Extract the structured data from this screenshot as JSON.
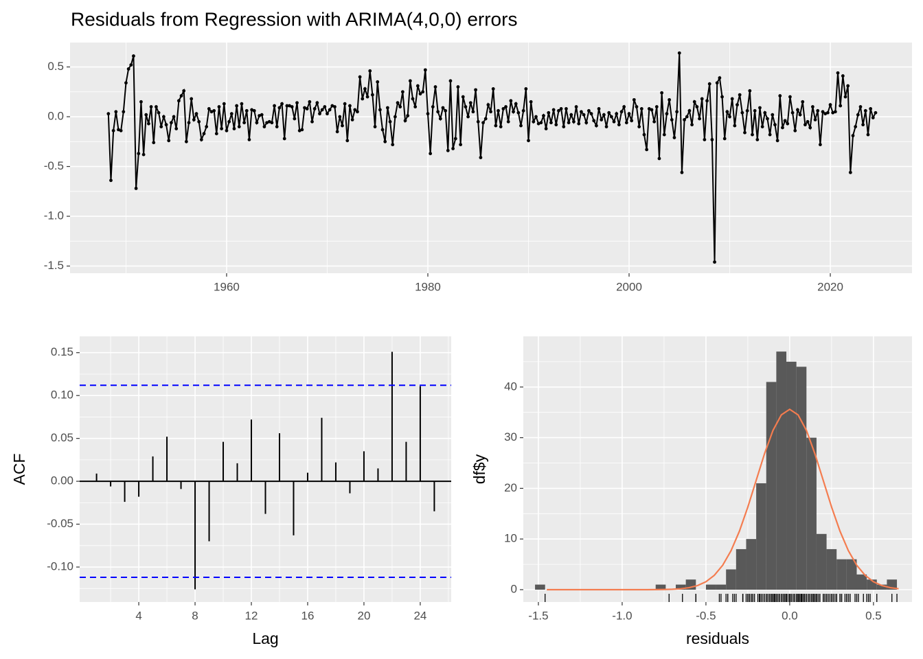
{
  "chart_data": [
    {
      "type": "line",
      "title": "Residuals from Regression with ARIMA(4,0,0) errors",
      "x": [
        1948.25,
        1948.5,
        1948.75,
        1949,
        1949.25,
        1949.5,
        1949.75,
        1950,
        1950.25,
        1950.5,
        1950.75,
        1951,
        1951.25,
        1951.5,
        1951.75,
        1952,
        1952.25,
        1952.5,
        1952.75,
        1953,
        1953.25,
        1953.5,
        1953.75,
        1954,
        1954.25,
        1954.5,
        1954.75,
        1955,
        1955.25,
        1955.5,
        1955.75,
        1956,
        1956.25,
        1956.5,
        1956.75,
        1957,
        1957.25,
        1957.5,
        1957.75,
        1958,
        1958.25,
        1958.5,
        1958.75,
        1959,
        1959.25,
        1959.5,
        1959.75,
        1960,
        1960.25,
        1960.5,
        1960.75,
        1961,
        1961.25,
        1961.5,
        1961.75,
        1962,
        1962.25,
        1962.5,
        1962.75,
        1963,
        1963.25,
        1963.5,
        1963.75,
        1964,
        1964.25,
        1964.5,
        1964.75,
        1965,
        1965.25,
        1965.5,
        1965.75,
        1966,
        1966.25,
        1966.5,
        1966.75,
        1967,
        1967.25,
        1967.5,
        1967.75,
        1968,
        1968.25,
        1968.5,
        1968.75,
        1969,
        1969.25,
        1969.5,
        1969.75,
        1970,
        1970.25,
        1970.5,
        1970.75,
        1971,
        1971.25,
        1971.5,
        1971.75,
        1972,
        1972.25,
        1972.5,
        1972.75,
        1973,
        1973.25,
        1973.5,
        1973.75,
        1974,
        1974.25,
        1974.5,
        1974.75,
        1975,
        1975.25,
        1975.5,
        1975.75,
        1976,
        1976.25,
        1976.5,
        1976.75,
        1977,
        1977.25,
        1977.5,
        1977.75,
        1978,
        1978.25,
        1978.5,
        1978.75,
        1979,
        1979.25,
        1979.5,
        1979.75,
        1980,
        1980.25,
        1980.5,
        1980.75,
        1981,
        1981.25,
        1981.5,
        1981.75,
        1982,
        1982.25,
        1982.5,
        1982.75,
        1983,
        1983.25,
        1983.5,
        1983.75,
        1984,
        1984.25,
        1984.5,
        1984.75,
        1985,
        1985.25,
        1985.5,
        1985.75,
        1986,
        1986.25,
        1986.5,
        1986.75,
        1987,
        1987.25,
        1987.5,
        1987.75,
        1988,
        1988.25,
        1988.5,
        1988.75,
        1989,
        1989.25,
        1989.5,
        1989.75,
        1990,
        1990.25,
        1990.5,
        1990.75,
        1991,
        1991.25,
        1991.5,
        1991.75,
        1992,
        1992.25,
        1992.5,
        1992.75,
        1993,
        1993.25,
        1993.5,
        1993.75,
        1994,
        1994.25,
        1994.5,
        1994.75,
        1995,
        1995.25,
        1995.5,
        1995.75,
        1996,
        1996.25,
        1996.5,
        1996.75,
        1997,
        1997.25,
        1997.5,
        1997.75,
        1998,
        1998.25,
        1998.5,
        1998.75,
        1999,
        1999.25,
        1999.5,
        1999.75,
        2000,
        2000.25,
        2000.5,
        2000.75,
        2001,
        2001.25,
        2001.5,
        2001.75,
        2002,
        2002.25,
        2002.5,
        2002.75,
        2003,
        2003.25,
        2003.5,
        2003.75,
        2004,
        2004.25,
        2004.5,
        2004.75,
        2005,
        2005.25,
        2005.5,
        2005.75,
        2006,
        2006.25,
        2006.5,
        2006.75,
        2007,
        2007.25,
        2007.5,
        2007.75,
        2008,
        2008.25,
        2008.5,
        2008.75,
        2009,
        2009.25,
        2009.5,
        2009.75,
        2010,
        2010.25,
        2010.5,
        2010.75,
        2011,
        2011.25,
        2011.5,
        2011.75,
        2012,
        2012.25,
        2012.5,
        2012.75,
        2013,
        2013.25,
        2013.5,
        2013.75,
        2014,
        2014.25,
        2014.5,
        2014.75,
        2015,
        2015.25,
        2015.5,
        2015.75,
        2016,
        2016.25,
        2016.5,
        2016.75,
        2017,
        2017.25,
        2017.5,
        2017.75,
        2018,
        2018.25,
        2018.5,
        2018.75,
        2019,
        2019.25,
        2019.5,
        2019.75,
        2020,
        2020.25,
        2020.5,
        2020.75,
        2021,
        2021.25,
        2021.5,
        2021.75,
        2022,
        2022.25,
        2022.5,
        2022.75,
        2023,
        2023.25,
        2023.5,
        2023.75,
        2024,
        2024.25,
        2024.5
      ],
      "series": [
        {
          "color": "#000000",
          "values": [
            0.03,
            -0.64,
            -0.14,
            0.05,
            -0.13,
            -0.14,
            0.05,
            0.34,
            0.48,
            0.52,
            0.61,
            -0.72,
            -0.37,
            0.15,
            -0.38,
            0.02,
            -0.07,
            0.1,
            -0.26,
            0.1,
            0.04,
            -0.1,
            0.0,
            -0.08,
            -0.24,
            -0.06,
            0.0,
            -0.12,
            0.16,
            0.21,
            0.26,
            -0.25,
            -0.06,
            0.18,
            -0.03,
            0.03,
            -0.05,
            -0.23,
            -0.17,
            -0.1,
            0.08,
            0.05,
            0.06,
            -0.17,
            0.1,
            -0.12,
            0.13,
            -0.14,
            -0.05,
            0.03,
            -0.12,
            0.11,
            -0.1,
            0.13,
            -0.06,
            0.06,
            -0.23,
            0.07,
            0.06,
            -0.06,
            0.01,
            0.02,
            -0.1,
            -0.06,
            -0.05,
            -0.06,
            0.11,
            -0.1,
            0.09,
            0.13,
            -0.22,
            0.11,
            0.11,
            0.1,
            -0.02,
            0.14,
            -0.14,
            -0.13,
            0.09,
            0.08,
            0.15,
            -0.05,
            0.08,
            0.14,
            0.03,
            0.07,
            0.1,
            0.03,
            0.07,
            0.11,
            0.1,
            -0.15,
            0.0,
            -0.09,
            0.13,
            -0.24,
            0.11,
            -0.03,
            0.07,
            0.05,
            0.4,
            0.18,
            0.28,
            0.2,
            0.46,
            0.22,
            -0.1,
            0.35,
            0.07,
            -0.13,
            -0.25,
            0.09,
            -0.05,
            -0.28,
            0.0,
            0.14,
            0.1,
            0.25,
            -0.04,
            0.01,
            0.36,
            0.18,
            0.1,
            0.31,
            0.23,
            0.25,
            0.47,
            0.03,
            -0.37,
            0.1,
            0.3,
            0.05,
            -0.02,
            0.09,
            0.06,
            -0.34,
            0.36,
            -0.32,
            -0.22,
            0.3,
            -0.28,
            0.2,
            0.1,
            0.0,
            0.14,
            0.05,
            0.27,
            -0.05,
            -0.41,
            -0.06,
            -0.02,
            0.12,
            0.05,
            0.28,
            -0.09,
            0.06,
            -0.1,
            0.08,
            0.1,
            -0.05,
            0.16,
            0.05,
            0.13,
            0.04,
            -0.09,
            0.06,
            0.28,
            -0.24,
            0.15,
            -0.05,
            0.0,
            -0.07,
            -0.06,
            0.01,
            -0.12,
            0.04,
            -0.06,
            0.07,
            -0.08,
            0.06,
            0.08,
            -0.1,
            0.08,
            -0.06,
            0.02,
            -0.05,
            0.1,
            -0.07,
            0.05,
            0.02,
            -0.06,
            0.06,
            0.03,
            -0.04,
            -0.09,
            0.08,
            -0.03,
            0.02,
            -0.1,
            0.04,
            0.0,
            -0.05,
            0.03,
            -0.08,
            0.05,
            0.1,
            -0.06,
            0.03,
            -0.04,
            0.17,
            0.1,
            -0.1,
            0.08,
            -0.18,
            -0.33,
            0.08,
            0.07,
            -0.05,
            0.1,
            -0.42,
            0.24,
            -0.18,
            0.03,
            0.17,
            -0.03,
            -0.21,
            0.05,
            0.64,
            -0.56,
            -0.03,
            0.0,
            0.06,
            -0.08,
            0.15,
            0.1,
            -0.02,
            0.18,
            -0.23,
            0.16,
            0.33,
            -0.23,
            -1.46,
            0.34,
            0.39,
            0.2,
            -0.22,
            0.05,
            0.0,
            0.18,
            -0.09,
            0.12,
            0.22,
            0.04,
            -0.16,
            0.06,
            0.26,
            -0.18,
            0.06,
            -0.23,
            0.09,
            -0.1,
            0.04,
            -0.02,
            -0.18,
            0.02,
            -0.08,
            -0.24,
            0.21,
            -0.11,
            -0.04,
            -0.07,
            0.2,
            0.04,
            -0.14,
            0.07,
            0.02,
            0.15,
            -0.08,
            -0.05,
            -0.11,
            0.1,
            -0.03,
            0.06,
            -0.28,
            0.05,
            0.03,
            0.04,
            0.12,
            0.04,
            0.05,
            0.44,
            0.11,
            0.41,
            0.2,
            0.31,
            -0.56,
            -0.19,
            -0.1,
            0.02,
            0.1,
            -0.08,
            0.06,
            -0.18,
            0.08,
            -0.01,
            0.04
          ]
        }
      ],
      "xlim": [
        1944.44,
        2028.12
      ],
      "ylim": [
        -1.572,
        0.745
      ],
      "xticks": [
        1960,
        1980,
        2000,
        2020
      ],
      "yticks": [
        -1.5,
        {
          "value": -1,
          "label": "-1.0"
        },
        -0.5,
        {
          "value": 0,
          "label": "0.0"
        },
        0.5
      ],
      "grid": true
    },
    {
      "type": "acf",
      "xlabel": "Lag",
      "ylabel": "ACF",
      "x": [
        1,
        2,
        3,
        4,
        5,
        6,
        7,
        8,
        9,
        10,
        11,
        12,
        13,
        14,
        15,
        16,
        17,
        18,
        19,
        20,
        21,
        22,
        23,
        24,
        25
      ],
      "values": [
        0.009,
        -0.006,
        -0.024,
        -0.018,
        0.029,
        0.052,
        -0.009,
        -0.126,
        -0.07,
        0.046,
        0.021,
        0.072,
        -0.038,
        0.056,
        -0.063,
        0.01,
        0.074,
        0.022,
        -0.014,
        0.035,
        0.015,
        0.151,
        0.046,
        0.111,
        -0.035
      ],
      "color": "#000000",
      "bounds": [
        0.112,
        -0.112
      ],
      "bounds_color": "#0000ff",
      "xlim": [
        -0.2,
        26.2
      ],
      "ylim": [
        -0.1408,
        0.169
      ],
      "xticks": [
        4,
        8,
        12,
        16,
        20,
        24
      ],
      "yticks": [
        {
          "value": -0.1,
          "label": "-0.10"
        },
        {
          "value": -0.05,
          "label": "-0.05"
        },
        {
          "value": 0,
          "label": "0.00"
        },
        {
          "value": 0.05,
          "label": "0.05"
        },
        {
          "value": 0.1,
          "label": "0.10"
        },
        {
          "value": 0.15,
          "label": "0.15"
        }
      ],
      "grid": true
    },
    {
      "type": "histogram",
      "xlabel": "residuals",
      "ylabel": "df$y",
      "bins": [
        -1.52,
        -1.46,
        -1.4,
        -1.34,
        -1.28,
        -1.22,
        -1.16,
        -1.1,
        -1.04,
        -0.98,
        -0.92,
        -0.86,
        -0.8,
        -0.74,
        -0.68,
        -0.62,
        -0.56,
        -0.5,
        -0.44,
        -0.38,
        -0.32,
        -0.26,
        -0.2,
        -0.14,
        -0.08,
        -0.02,
        0.04,
        0.1,
        0.16,
        0.22,
        0.28,
        0.34,
        0.4,
        0.46,
        0.52,
        0.58,
        0.64
      ],
      "counts": [
        1,
        0,
        0,
        0,
        0,
        0,
        0,
        0,
        0,
        0,
        0,
        0,
        1,
        0,
        1,
        2,
        0,
        1,
        1,
        4,
        8,
        10,
        21,
        41,
        47,
        45,
        44,
        30,
        11,
        8,
        6,
        6,
        3,
        2,
        1,
        2
      ],
      "color": "#595959",
      "curve": {
        "color": "#f47c4f",
        "x": [
          -1.45,
          -1.35,
          -1.25,
          -1.15,
          -1.05,
          -0.95,
          -0.85,
          -0.75,
          -0.7,
          -0.65,
          -0.6,
          -0.55,
          -0.5,
          -0.45,
          -0.4,
          -0.35,
          -0.3,
          -0.25,
          -0.2,
          -0.15,
          -0.1,
          -0.05,
          0,
          0.05,
          0.1,
          0.15,
          0.2,
          0.25,
          0.3,
          0.35,
          0.4,
          0.45,
          0.5,
          0.55,
          0.6,
          0.65
        ],
        "values": [
          0,
          0,
          0,
          0,
          0,
          0,
          0,
          0.03,
          0.08,
          0.18,
          0.4,
          0.81,
          1.56,
          2.83,
          4.82,
          7.7,
          11.56,
          16.3,
          21.59,
          26.87,
          31.42,
          34.5,
          35.6,
          34.5,
          31.42,
          26.87,
          21.59,
          16.3,
          11.56,
          7.7,
          4.82,
          2.83,
          1.56,
          0.81,
          0.4,
          0.18
        ]
      },
      "rug": true,
      "xlim": [
        -1.59,
        0.73
      ],
      "ylim": [
        -2.44,
        50
      ],
      "xticks": [
        -1.5,
        {
          "value": -1,
          "label": "-1.0"
        },
        -0.5,
        {
          "value": 0,
          "label": "0.0"
        },
        0.5
      ],
      "yticks": [
        0,
        10,
        20,
        30,
        40
      ],
      "grid": true
    }
  ]
}
